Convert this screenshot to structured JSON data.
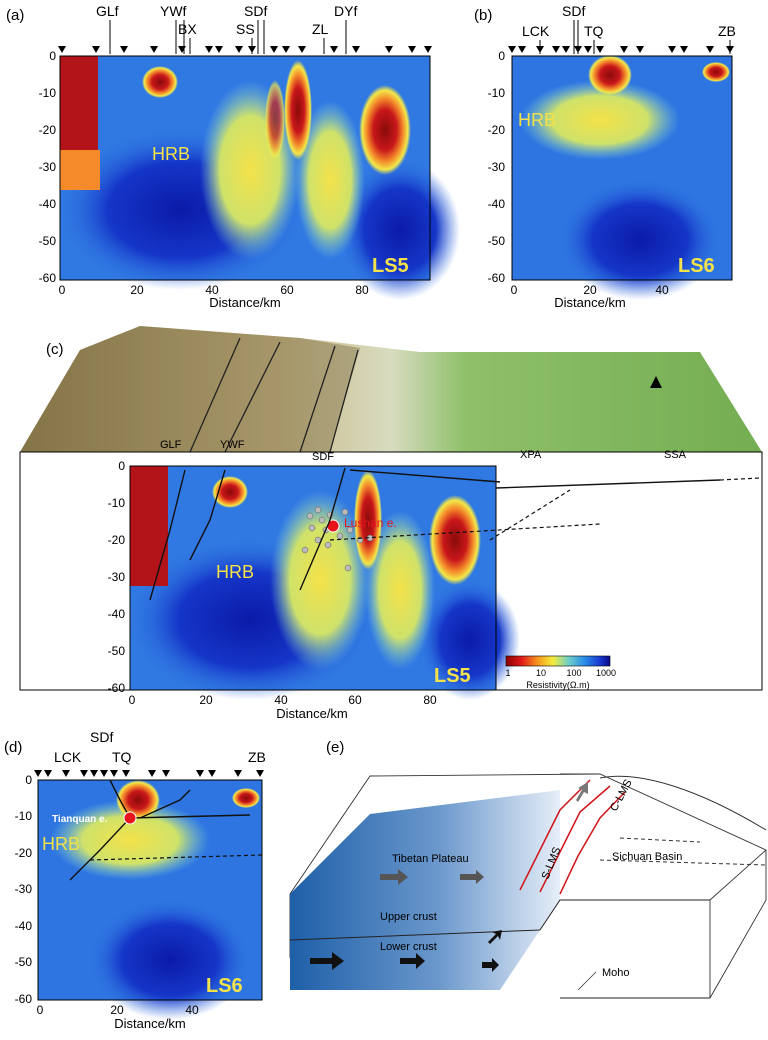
{
  "panels": {
    "a": {
      "label": "(a)",
      "profile": "LS5",
      "body_label": "HRB",
      "xlabel": "Distance/km",
      "x_ticks": [
        "0",
        "20",
        "40",
        "60",
        "80"
      ],
      "y_ticks": [
        "0",
        "-10",
        "-20",
        "-30",
        "-40",
        "-50",
        "-60"
      ],
      "faults": [
        "GLf",
        "YWf",
        "BX",
        "SS",
        "SDf",
        "ZL",
        "DYf"
      ]
    },
    "b": {
      "label": "(b)",
      "profile": "LS6",
      "body_label": "HRB",
      "xlabel": "Distance/km",
      "x_ticks": [
        "0",
        "20",
        "40"
      ],
      "y_ticks": [
        "0",
        "-10",
        "-20",
        "-30",
        "-40",
        "-50",
        "-60"
      ],
      "faults": [
        "LCK",
        "SDf",
        "TQ",
        "ZB"
      ]
    },
    "c": {
      "label": "(c)",
      "profile": "LS5",
      "body_label": "HRB",
      "xlabel": "Distance/km",
      "x_ticks": [
        "0",
        "20",
        "40",
        "60",
        "80"
      ],
      "y_ticks": [
        "0",
        "-10",
        "-20",
        "-30",
        "-40",
        "-50",
        "-60"
      ],
      "surface_labels": [
        "GLF",
        "YWF",
        "SDF",
        "XPA",
        "SSA"
      ],
      "event_label": "Lushan e.",
      "colorbar": {
        "ticks": [
          "1",
          "10",
          "100",
          "1000"
        ],
        "title": "Resistivity(Ω.m)"
      }
    },
    "d": {
      "label": "(d)",
      "profile": "LS6",
      "body_label": "HRB",
      "xlabel": "Distance/km",
      "x_ticks": [
        "0",
        "20",
        "40"
      ],
      "y_ticks": [
        "0",
        "-10",
        "-20",
        "-30",
        "-40",
        "-50",
        "-60"
      ],
      "faults": [
        "LCK",
        "SDf",
        "TQ",
        "ZB"
      ],
      "event_label": "Tianquan e."
    },
    "e": {
      "label": "(e)",
      "labels": {
        "tibetan_plateau": "Tibetan Plateau",
        "upper_crust": "Upper crust",
        "lower_crust": "Lower crust",
        "moho": "Moho",
        "sichuan_basin": "Sichuan Basin",
        "s_lms": "S-LMS",
        "c_lms": "C-LMS"
      }
    }
  },
  "colors": {
    "deep_blue": "#0a1fb4",
    "blue": "#1f5fe6",
    "cyan": "#3fb8e8",
    "yellow": "#f1e64a",
    "orange": "#f48a2a",
    "red": "#b5141a",
    "terrain_green": "#7fb45a",
    "event_red": "#e8141c"
  }
}
